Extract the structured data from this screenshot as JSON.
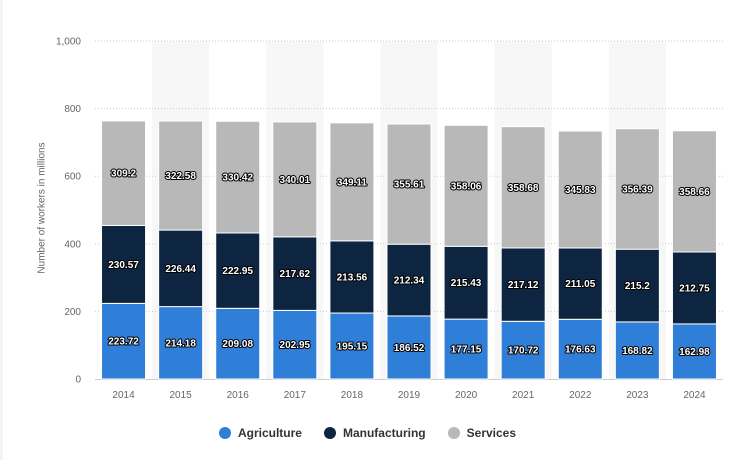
{
  "colors": {
    "agriculture": "#2f7ed8",
    "manufacturing": "#0d2540",
    "services": "#b8b8b8",
    "grid": "#cccccc",
    "axis_text": "#666666"
  },
  "chart_data": {
    "type": "bar",
    "stacked": true,
    "categories": [
      "2014",
      "2015",
      "2016",
      "2017",
      "2018",
      "2019",
      "2020",
      "2021",
      "2022",
      "2023",
      "2024"
    ],
    "series": [
      {
        "name": "Agriculture",
        "values": [
          223.72,
          214.18,
          209.08,
          202.95,
          195.15,
          186.52,
          177.15,
          170.72,
          176.63,
          168.82,
          162.98
        ]
      },
      {
        "name": "Manufacturing",
        "values": [
          230.57,
          226.44,
          222.95,
          217.62,
          213.56,
          212.34,
          215.43,
          217.12,
          211.05,
          215.2,
          212.75
        ]
      },
      {
        "name": "Services",
        "values": [
          309.2,
          322.58,
          330.42,
          340.01,
          349.11,
          355.61,
          358.06,
          358.68,
          345.83,
          356.39,
          358.66
        ]
      }
    ],
    "ylabel": "Number of workers in millions",
    "xlabel": "",
    "ylim": [
      0,
      1000
    ],
    "yticks": [
      0,
      200,
      400,
      600,
      800,
      1000
    ],
    "ytick_labels": [
      "0",
      "200",
      "400",
      "600",
      "800",
      "1,000"
    ],
    "grid": true,
    "legend_position": "bottom-center"
  }
}
